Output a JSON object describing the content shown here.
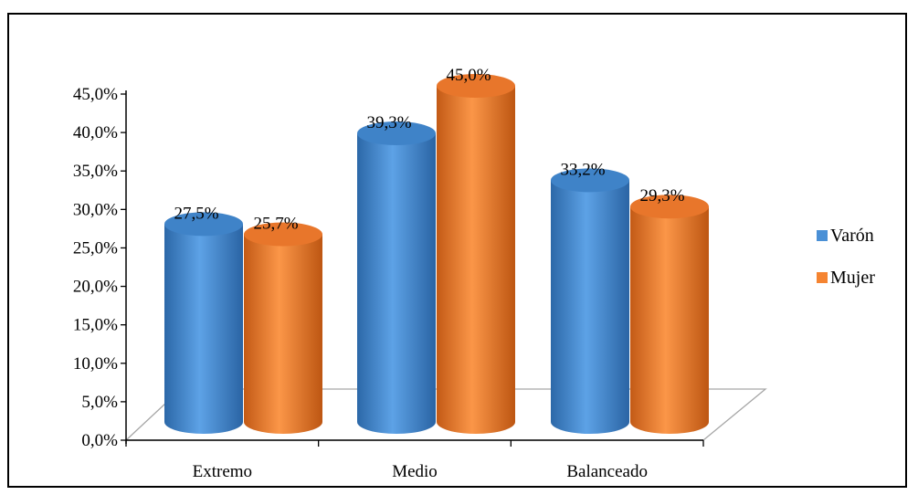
{
  "chart_data": {
    "type": "bar",
    "title": "",
    "xlabel": "",
    "ylabel": "",
    "ylim": [
      0,
      45
    ],
    "y_tick_step": 5,
    "y_tick_labels": [
      "0,0%",
      "5,0%",
      "10,0%",
      "15,0%",
      "20,0%",
      "25,0%",
      "30,0%",
      "35,0%",
      "40,0%",
      "45,0%"
    ],
    "categories": [
      "Extremo",
      "Medio",
      "Balanceado"
    ],
    "series": [
      {
        "name": "Varón",
        "values": [
          27.5,
          39.3,
          33.2
        ],
        "labels": [
          "27,5%",
          "39,3%",
          "33,2%"
        ],
        "color": "#4a90d6"
      },
      {
        "name": "Mujer",
        "values": [
          25.7,
          45.0,
          29.3
        ],
        "labels": [
          "25,7%",
          "45,0%",
          "29,3%"
        ],
        "color": "#f58431"
      }
    ],
    "legend": "right",
    "grid": false,
    "style": "3d-cylinder"
  }
}
